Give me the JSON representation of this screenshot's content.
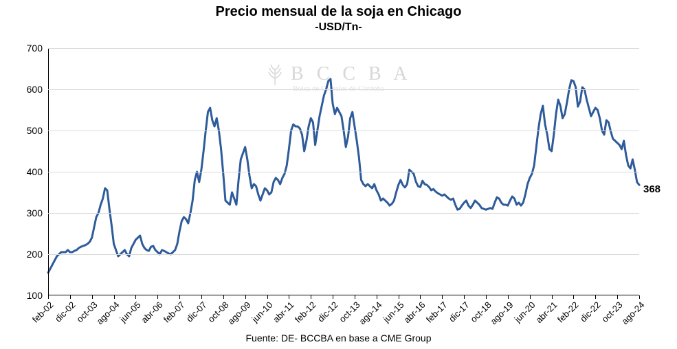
{
  "chart": {
    "type": "line",
    "title": "Precio mensual de la soja en Chicago",
    "subtitle": "-USD/Tn-",
    "watermark_text": "B C C B A",
    "watermark_sub": "Bolsa de Cereales de Córdoba",
    "footer": "Fuente: DE- BCCBA en base a CME Group",
    "ylim": [
      100,
      700
    ],
    "yticks": [
      100,
      200,
      300,
      400,
      500,
      600,
      700
    ],
    "xlabels": [
      "feb-02",
      "dic-02",
      "oct-03",
      "ago-04",
      "jun-05",
      "abr-06",
      "feb-07",
      "dic-07",
      "oct-08",
      "ago-09",
      "jun-10",
      "abr-11",
      "feb-12",
      "dic-12",
      "oct-13",
      "ago-14",
      "jun-15",
      "abr-16",
      "feb-17",
      "dic-17",
      "oct-18",
      "ago-19",
      "jun-20",
      "abr-21",
      "feb-22",
      "dic-22",
      "oct-23",
      "ago-24"
    ],
    "n_points": 271,
    "last_value_label": "368",
    "line_color": "#2e5b9a",
    "line_width": 3,
    "grid_color": "#d9d9d9",
    "axis_color": "#000000",
    "background_color": "#ffffff",
    "title_fontsize": 20,
    "subtitle_fontsize": 16,
    "tick_fontsize": 14,
    "footer_fontsize": 14,
    "values": [
      155,
      165,
      175,
      185,
      195,
      200,
      205,
      205,
      205,
      210,
      205,
      205,
      208,
      210,
      215,
      218,
      220,
      222,
      225,
      230,
      240,
      265,
      290,
      300,
      320,
      335,
      360,
      355,
      310,
      270,
      225,
      210,
      195,
      200,
      205,
      210,
      200,
      195,
      215,
      225,
      235,
      240,
      245,
      225,
      215,
      210,
      208,
      218,
      220,
      210,
      205,
      200,
      210,
      208,
      205,
      202,
      200,
      205,
      210,
      225,
      255,
      280,
      290,
      285,
      275,
      300,
      330,
      380,
      400,
      375,
      405,
      450,
      500,
      545,
      555,
      525,
      510,
      530,
      500,
      455,
      395,
      330,
      325,
      320,
      350,
      335,
      320,
      380,
      430,
      445,
      460,
      430,
      390,
      360,
      370,
      365,
      345,
      330,
      345,
      360,
      355,
      345,
      350,
      375,
      385,
      380,
      370,
      385,
      395,
      415,
      455,
      500,
      515,
      510,
      510,
      505,
      490,
      450,
      475,
      510,
      530,
      520,
      465,
      500,
      535,
      560,
      585,
      600,
      620,
      625,
      565,
      540,
      555,
      545,
      535,
      500,
      460,
      485,
      530,
      545,
      510,
      475,
      435,
      380,
      370,
      365,
      370,
      365,
      360,
      370,
      355,
      345,
      330,
      335,
      330,
      325,
      318,
      322,
      330,
      350,
      368,
      380,
      368,
      362,
      370,
      405,
      400,
      395,
      376,
      365,
      363,
      378,
      370,
      368,
      363,
      355,
      358,
      352,
      348,
      345,
      342,
      345,
      340,
      335,
      332,
      335,
      320,
      308,
      310,
      318,
      325,
      330,
      318,
      312,
      320,
      330,
      325,
      320,
      312,
      310,
      308,
      310,
      312,
      310,
      325,
      338,
      335,
      325,
      320,
      320,
      318,
      330,
      340,
      335,
      320,
      325,
      318,
      325,
      345,
      370,
      385,
      395,
      415,
      460,
      505,
      540,
      560,
      515,
      490,
      455,
      450,
      490,
      540,
      575,
      560,
      530,
      540,
      568,
      600,
      622,
      620,
      605,
      558,
      570,
      605,
      600,
      575,
      555,
      535,
      545,
      555,
      550,
      530,
      500,
      490,
      525,
      520,
      498,
      480,
      475,
      470,
      465,
      455,
      475,
      440,
      415,
      408,
      430,
      405,
      375,
      368
    ]
  }
}
